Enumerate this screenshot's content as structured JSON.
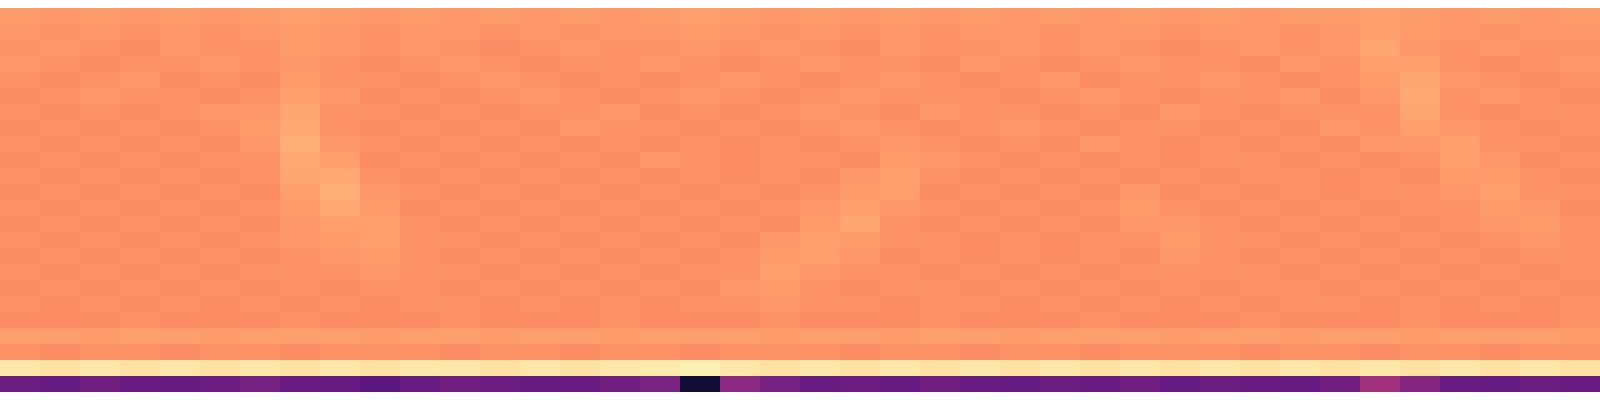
{
  "chart_data": {
    "type": "heatmap",
    "tick_labels": false,
    "color": "magma",
    "zlim": [
      0,
      100
    ],
    "z": [
      [
        79,
        78,
        79,
        78,
        79,
        78,
        79,
        80,
        79,
        78,
        79,
        78,
        79,
        78,
        79,
        78,
        79,
        80,
        79,
        78,
        79,
        78,
        79,
        78,
        79,
        78,
        79,
        78,
        79,
        78,
        79,
        78,
        79,
        79,
        80,
        79,
        78,
        79,
        78,
        79
      ],
      [
        78,
        77,
        78,
        77,
        78,
        77,
        78,
        79,
        78,
        77,
        78,
        78,
        77,
        78,
        77,
        78,
        78,
        79,
        78,
        77,
        78,
        77,
        78,
        77,
        78,
        78,
        77,
        78,
        78,
        77,
        78,
        78,
        77,
        78,
        80,
        79,
        78,
        77,
        78,
        78
      ],
      [
        77,
        78,
        77,
        76,
        78,
        77,
        77,
        79,
        78,
        77,
        78,
        77,
        76,
        77,
        78,
        77,
        77,
        78,
        77,
        78,
        77,
        76,
        78,
        77,
        77,
        78,
        77,
        78,
        77,
        76,
        77,
        78,
        77,
        78,
        81,
        78,
        77,
        78,
        77,
        77
      ],
      [
        78,
        77,
        76,
        77,
        77,
        78,
        77,
        78,
        77,
        76,
        77,
        78,
        77,
        76,
        77,
        77,
        78,
        77,
        76,
        77,
        78,
        77,
        77,
        76,
        78,
        77,
        76,
        77,
        78,
        77,
        77,
        76,
        78,
        77,
        80,
        80,
        77,
        76,
        77,
        78
      ],
      [
        77,
        76,
        77,
        78,
        76,
        77,
        76,
        79,
        77,
        77,
        76,
        77,
        78,
        77,
        76,
        77,
        76,
        77,
        78,
        77,
        76,
        77,
        78,
        77,
        76,
        77,
        78,
        76,
        77,
        77,
        78,
        77,
        76,
        77,
        79,
        81,
        78,
        77,
        76,
        77
      ],
      [
        76,
        77,
        78,
        77,
        77,
        76,
        77,
        80,
        78,
        76,
        77,
        76,
        77,
        78,
        77,
        76,
        77,
        78,
        77,
        76,
        77,
        78,
        77,
        77,
        77,
        76,
        77,
        78,
        77,
        76,
        77,
        77,
        78,
        76,
        78,
        82,
        77,
        78,
        77,
        76
      ],
      [
        77,
        76,
        77,
        76,
        77,
        78,
        78,
        81,
        77,
        77,
        76,
        77,
        76,
        77,
        77,
        78,
        76,
        77,
        76,
        77,
        78,
        77,
        76,
        78,
        77,
        77,
        76,
        77,
        76,
        78,
        77,
        76,
        77,
        77,
        77,
        81,
        77,
        76,
        77,
        77
      ],
      [
        76,
        77,
        76,
        77,
        76,
        77,
        79,
        82,
        77,
        76,
        77,
        76,
        77,
        76,
        78,
        77,
        77,
        76,
        77,
        76,
        77,
        78,
        77,
        76,
        77,
        78,
        77,
        76,
        77,
        77,
        76,
        77,
        76,
        78,
        77,
        80,
        78,
        77,
        76,
        77
      ],
      [
        77,
        76,
        77,
        76,
        77,
        76,
        78,
        83,
        78,
        77,
        76,
        77,
        76,
        77,
        76,
        77,
        76,
        77,
        76,
        77,
        76,
        77,
        78,
        77,
        76,
        77,
        76,
        78,
        77,
        76,
        77,
        76,
        77,
        76,
        78,
        78,
        80,
        77,
        77,
        76
      ],
      [
        76,
        77,
        76,
        77,
        76,
        77,
        77,
        82,
        80,
        76,
        77,
        76,
        77,
        76,
        77,
        76,
        78,
        77,
        76,
        77,
        77,
        76,
        79,
        78,
        77,
        76,
        77,
        76,
        77,
        76,
        77,
        77,
        76,
        77,
        76,
        77,
        80,
        78,
        76,
        77
      ],
      [
        77,
        76,
        77,
        76,
        77,
        76,
        77,
        81,
        82,
        77,
        76,
        77,
        76,
        77,
        76,
        77,
        76,
        77,
        76,
        77,
        76,
        78,
        80,
        77,
        76,
        77,
        76,
        77,
        76,
        77,
        76,
        77,
        77,
        76,
        77,
        76,
        79,
        79,
        77,
        76
      ],
      [
        76,
        77,
        76,
        77,
        76,
        77,
        76,
        80,
        83,
        78,
        77,
        76,
        77,
        76,
        77,
        76,
        77,
        76,
        77,
        76,
        77,
        79,
        80,
        76,
        77,
        76,
        77,
        76,
        78,
        76,
        77,
        76,
        77,
        76,
        77,
        77,
        78,
        80,
        77,
        77
      ],
      [
        77,
        76,
        77,
        76,
        77,
        76,
        77,
        79,
        82,
        79,
        76,
        77,
        76,
        77,
        76,
        77,
        76,
        77,
        76,
        77,
        78,
        80,
        78,
        77,
        76,
        77,
        76,
        77,
        79,
        77,
        76,
        77,
        76,
        77,
        76,
        77,
        77,
        79,
        78,
        76
      ],
      [
        76,
        77,
        76,
        77,
        76,
        77,
        76,
        78,
        80,
        80,
        77,
        76,
        77,
        76,
        77,
        76,
        77,
        76,
        77,
        76,
        79,
        81,
        77,
        76,
        77,
        76,
        77,
        76,
        78,
        78,
        77,
        76,
        77,
        76,
        77,
        76,
        77,
        78,
        79,
        77
      ],
      [
        77,
        76,
        77,
        76,
        77,
        76,
        77,
        78,
        79,
        80,
        77,
        77,
        76,
        77,
        76,
        77,
        76,
        77,
        76,
        78,
        80,
        79,
        77,
        77,
        76,
        77,
        76,
        77,
        77,
        79,
        77,
        77,
        76,
        77,
        76,
        77,
        76,
        77,
        78,
        77
      ],
      [
        76,
        77,
        76,
        77,
        76,
        77,
        76,
        77,
        78,
        79,
        77,
        76,
        77,
        76,
        77,
        76,
        77,
        76,
        77,
        79,
        80,
        78,
        76,
        77,
        76,
        77,
        76,
        77,
        76,
        78,
        77,
        76,
        77,
        76,
        77,
        76,
        77,
        76,
        77,
        77
      ],
      [
        77,
        76,
        77,
        76,
        77,
        76,
        77,
        77,
        77,
        78,
        77,
        77,
        76,
        77,
        76,
        77,
        76,
        77,
        77,
        80,
        78,
        77,
        77,
        76,
        77,
        76,
        77,
        76,
        77,
        77,
        77,
        77,
        76,
        77,
        76,
        77,
        76,
        77,
        76,
        77
      ],
      [
        76,
        77,
        76,
        77,
        76,
        77,
        76,
        77,
        76,
        77,
        77,
        76,
        77,
        76,
        77,
        76,
        77,
        76,
        78,
        79,
        77,
        76,
        77,
        77,
        76,
        77,
        76,
        77,
        76,
        77,
        76,
        77,
        77,
        76,
        77,
        76,
        77,
        76,
        77,
        76
      ],
      [
        77,
        76,
        77,
        76,
        77,
        76,
        77,
        76,
        77,
        76,
        77,
        77,
        76,
        77,
        76,
        77,
        76,
        77,
        77,
        78,
        77,
        77,
        76,
        77,
        77,
        76,
        77,
        76,
        77,
        76,
        77,
        76,
        77,
        77,
        76,
        77,
        76,
        77,
        76,
        77
      ],
      [
        76,
        76,
        76,
        77,
        76,
        76,
        76,
        77,
        76,
        76,
        76,
        77,
        76,
        76,
        76,
        77,
        76,
        76,
        76,
        77,
        76,
        76,
        76,
        77,
        76,
        76,
        76,
        77,
        76,
        76,
        76,
        77,
        76,
        76,
        76,
        77,
        76,
        76,
        76,
        77
      ],
      [
        80,
        80,
        79,
        80,
        80,
        79,
        80,
        80,
        80,
        79,
        80,
        80,
        79,
        80,
        80,
        79,
        80,
        80,
        80,
        79,
        80,
        80,
        79,
        80,
        80,
        79,
        80,
        80,
        80,
        79,
        80,
        80,
        79,
        80,
        80,
        79,
        80,
        80,
        80,
        79
      ],
      [
        77,
        76,
        77,
        77,
        76,
        77,
        77,
        76,
        77,
        77,
        77,
        76,
        77,
        77,
        76,
        77,
        77,
        76,
        77,
        77,
        77,
        76,
        77,
        77,
        76,
        77,
        77,
        76,
        77,
        77,
        77,
        76,
        77,
        77,
        76,
        77,
        77,
        76,
        77,
        77
      ],
      [
        95,
        94,
        95,
        94,
        95,
        94,
        95,
        94,
        95,
        94,
        95,
        95,
        94,
        95,
        94,
        95,
        96,
        97,
        95,
        94,
        95,
        94,
        95,
        94,
        95,
        94,
        95,
        94,
        95,
        94,
        95,
        94,
        95,
        94,
        95,
        94,
        95,
        94,
        95,
        94
      ],
      [
        32,
        30,
        33,
        31,
        30,
        32,
        34,
        31,
        30,
        28,
        31,
        33,
        32,
        30,
        31,
        33,
        35,
        10,
        40,
        34,
        31,
        32,
        30,
        33,
        31,
        30,
        32,
        31,
        33,
        30,
        32,
        31,
        30,
        33,
        45,
        38,
        31,
        30,
        32,
        31
      ]
    ]
  }
}
